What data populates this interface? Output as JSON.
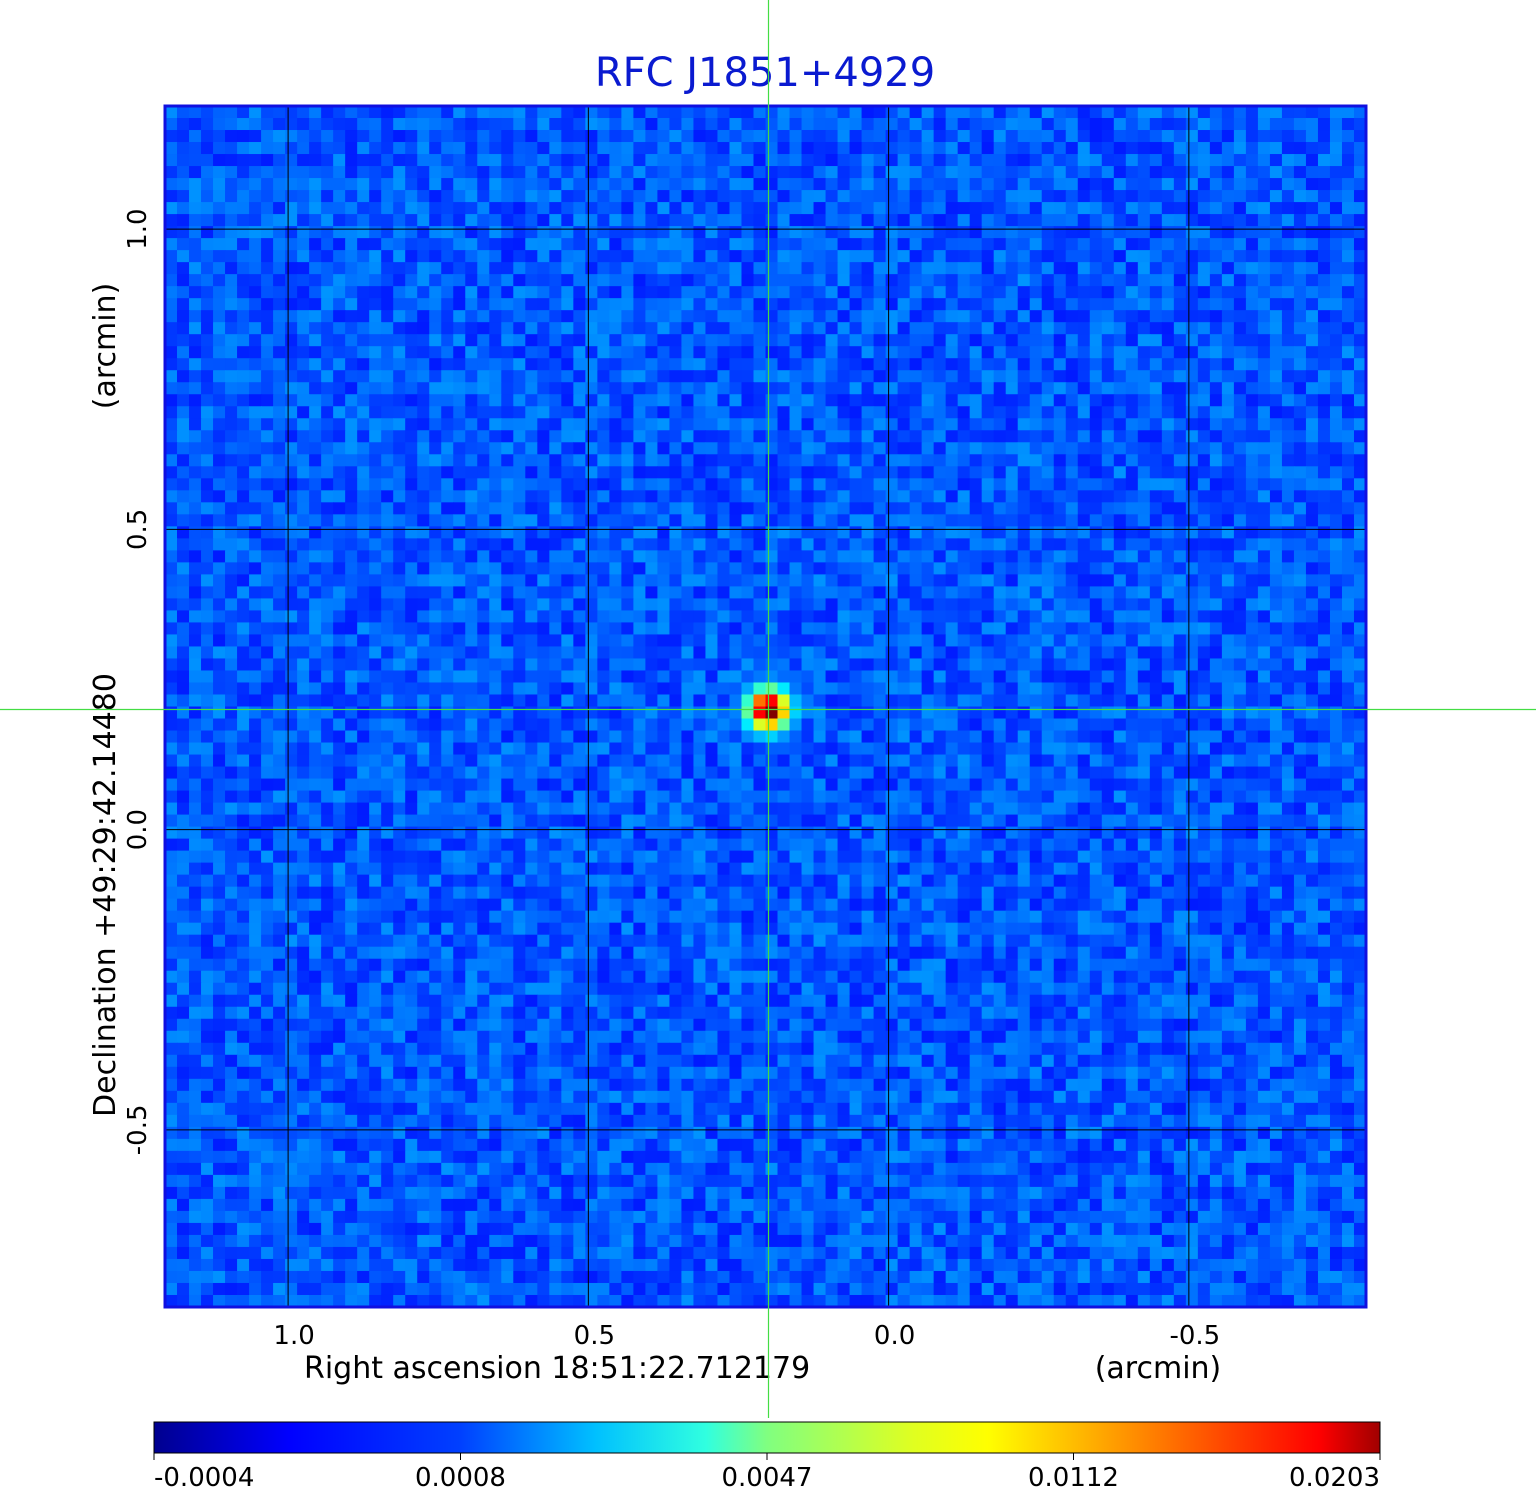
{
  "chart_data": {
    "type": "heatmap",
    "title": "RFC J1851+4929",
    "xlabel": "Right ascension  18:51:22.712179",
    "xlabel_unit": "(arcmin)",
    "ylabel": "Declination  +49:29:42.14480",
    "ylabel_unit": "(arcmin)",
    "x_ticks": [
      1.0,
      0.5,
      0.0,
      -0.5
    ],
    "x_tick_labels": [
      "1.0",
      "0.5",
      "0.0",
      "-0.5"
    ],
    "y_ticks": [
      1.0,
      0.5,
      0.0,
      -0.5
    ],
    "y_tick_labels": [
      "1.0",
      "0.5",
      "0.0",
      "-0.5"
    ],
    "xlim": [
      1.205,
      -0.795
    ],
    "ylim": [
      -0.795,
      1.205
    ],
    "x_inverted": true,
    "grid": true,
    "crosshair": {
      "x": 0.2,
      "y": 0.2
    },
    "source": {
      "x": 0.2,
      "y": 0.2,
      "peak": 0.0203
    },
    "background_range": [
      -0.0004,
      0.0008
    ],
    "colorscale": "jet",
    "colorbar": {
      "ticks": [
        -0.0004,
        0.0008,
        0.0047,
        0.0112,
        0.0203
      ],
      "tick_labels": [
        "-0.0004",
        "0.0008",
        "0.0047",
        "0.0112",
        "0.0203"
      ],
      "placement": "bottom"
    },
    "colors": {
      "title": "#0a1ad0",
      "grid": "#000000",
      "crosshair": "#44dd44",
      "frame": "#1010e0"
    }
  }
}
